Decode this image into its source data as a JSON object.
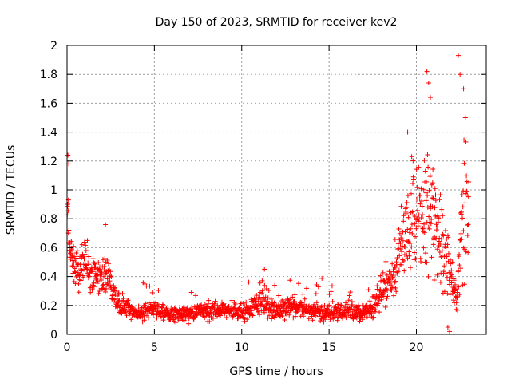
{
  "chart_data": {
    "type": "scatter",
    "title": "Day 150 of 2023, SRMTID for receiver kev2",
    "xlabel": "GPS time / hours",
    "ylabel": "SRMTID / TECUs",
    "xlim": [
      0,
      24
    ],
    "ylim": [
      0,
      2
    ],
    "xticks": [
      0,
      5,
      10,
      15,
      20
    ],
    "yticks": [
      0,
      0.2,
      0.4,
      0.6,
      0.8,
      1,
      1.2,
      1.4,
      1.6,
      1.8,
      2
    ],
    "grid": true,
    "marker": "+",
    "color": "#ff0000",
    "series": [
      {
        "name": "SRMTID",
        "profile": {
          "x": [
            0,
            0.1,
            0.3,
            0.6,
            1.0,
            1.5,
            2.0,
            2.3,
            2.6,
            3.0,
            3.5,
            4.0,
            5.0,
            6.0,
            7.0,
            8.0,
            9.0,
            10.0,
            11.0,
            12.0,
            13.0,
            14.0,
            15.0,
            16.0,
            17.0,
            17.5,
            18.0,
            18.5,
            19.0,
            19.5,
            20.0,
            20.5,
            21.0,
            21.5,
            22.0,
            22.3,
            22.6,
            23.0
          ],
          "y": [
            0.85,
            0.65,
            0.5,
            0.45,
            0.5,
            0.4,
            0.38,
            0.45,
            0.3,
            0.2,
            0.18,
            0.15,
            0.17,
            0.13,
            0.15,
            0.17,
            0.16,
            0.15,
            0.22,
            0.16,
            0.2,
            0.15,
            0.15,
            0.16,
            0.15,
            0.2,
            0.3,
            0.35,
            0.55,
            0.7,
            0.8,
            0.85,
            0.85,
            0.6,
            0.4,
            0.2,
            0.8,
            1.0
          ]
        },
        "highlights": [
          {
            "x": 0.05,
            "y": 1.24
          },
          {
            "x": 0.1,
            "y": 1.18
          },
          {
            "x": 0.08,
            "y": 0.93
          },
          {
            "x": 2.2,
            "y": 0.76
          },
          {
            "x": 11.3,
            "y": 0.45
          },
          {
            "x": 19.5,
            "y": 1.4
          },
          {
            "x": 20.6,
            "y": 1.82
          },
          {
            "x": 20.7,
            "y": 1.74
          },
          {
            "x": 20.8,
            "y": 1.64
          },
          {
            "x": 22.4,
            "y": 1.93
          },
          {
            "x": 22.5,
            "y": 1.8
          },
          {
            "x": 22.7,
            "y": 1.7
          },
          {
            "x": 22.8,
            "y": 1.5
          },
          {
            "x": 21.8,
            "y": 0.05
          },
          {
            "x": 21.9,
            "y": 0.02
          }
        ]
      }
    ]
  }
}
